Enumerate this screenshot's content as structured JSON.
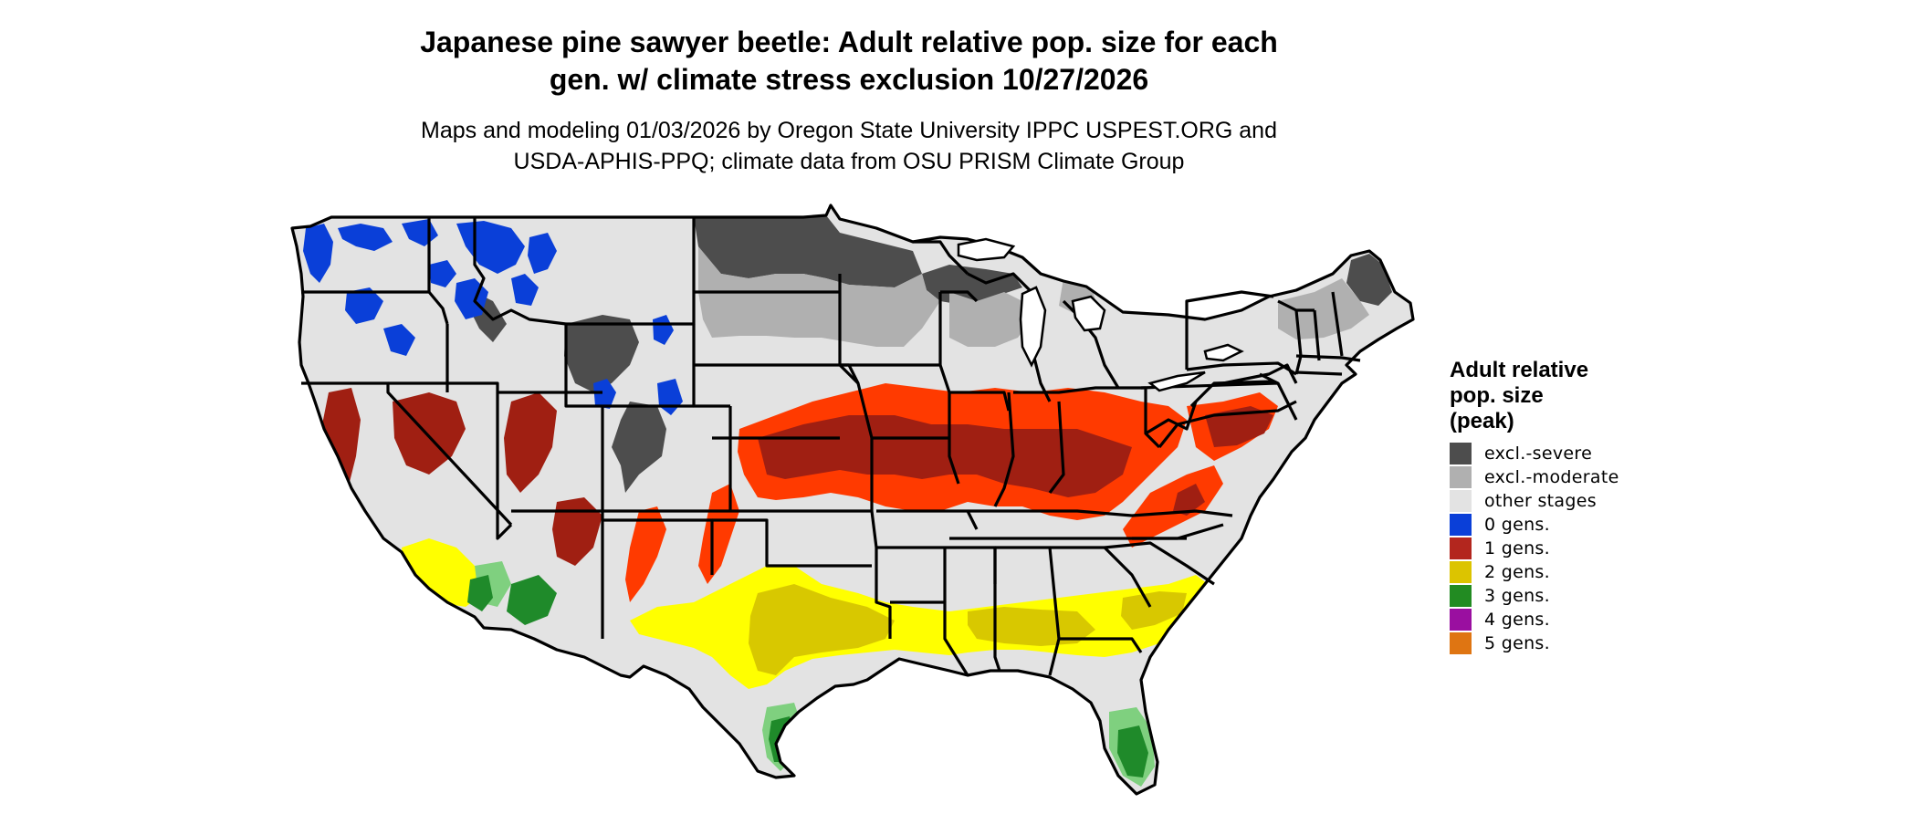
{
  "title": {
    "line1": "Japanese pine sawyer beetle: Adult relative pop. size for each",
    "line2": "gen. w/ climate stress exclusion 10/27/2026"
  },
  "subtitle": {
    "line1": "Maps and modeling 01/03/2026 by Oregon State University IPPC USPEST.ORG and",
    "line2": "USDA-APHIS-PPQ; climate data from OSU PRISM Climate Group"
  },
  "legend": {
    "title_line1": "Adult relative",
    "title_line2": "pop. size",
    "title_line3": "(peak)",
    "items": [
      {
        "label": "excl.-severe",
        "color": "#4d4d4d"
      },
      {
        "label": "excl.-moderate",
        "color": "#b0b0b0"
      },
      {
        "label": "other stages",
        "color": "#e3e3e3"
      },
      {
        "label": "0 gens.",
        "color": "#0a3fd8"
      },
      {
        "label": "1 gens.",
        "color": "#b3261e"
      },
      {
        "label": "2 gens.",
        "color": "#dcc400"
      },
      {
        "label": "3 gens.",
        "color": "#228b22"
      },
      {
        "label": "4 gens.",
        "color": "#9a0fa0"
      },
      {
        "label": "5 gens.",
        "color": "#df7512"
      }
    ]
  },
  "map_colors": {
    "background_land": "#e3e3e3",
    "state_border": "#000000",
    "excl_severe": "#4d4d4d",
    "excl_moderate": "#b0b0b0",
    "gen0": "#0a3fd8",
    "gen1_dark": "#a01f12",
    "gen1_bright": "#ff3a00",
    "gen2": "#ffff00",
    "gen2_dark": "#d8c800",
    "gen3": "#1f8a2a",
    "gen3_light": "#7fd07f"
  }
}
